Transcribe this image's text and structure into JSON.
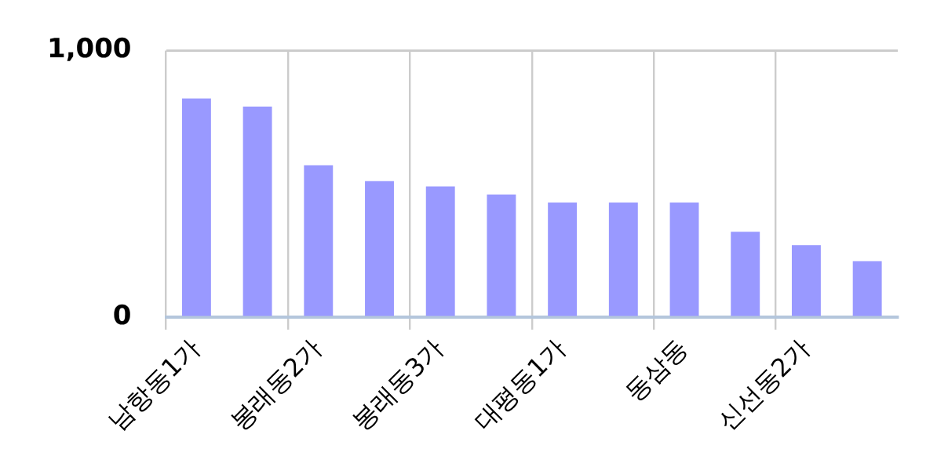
{
  "chart_data": {
    "type": "bar",
    "categories": [
      "남항동1가",
      null,
      "봉래동2가",
      null,
      "봉래동3가",
      null,
      "대평동1가",
      null,
      "동삼동",
      null,
      "신선동2가",
      null
    ],
    "values": [
      820,
      790,
      570,
      510,
      490,
      460,
      430,
      430,
      430,
      320,
      270,
      210
    ],
    "color": "#9999ff",
    "ylim": [
      0,
      1000
    ],
    "yticks": [
      0,
      {
        "value": 1000,
        "label": "1,000"
      }
    ],
    "grid": true,
    "legend": false
  }
}
